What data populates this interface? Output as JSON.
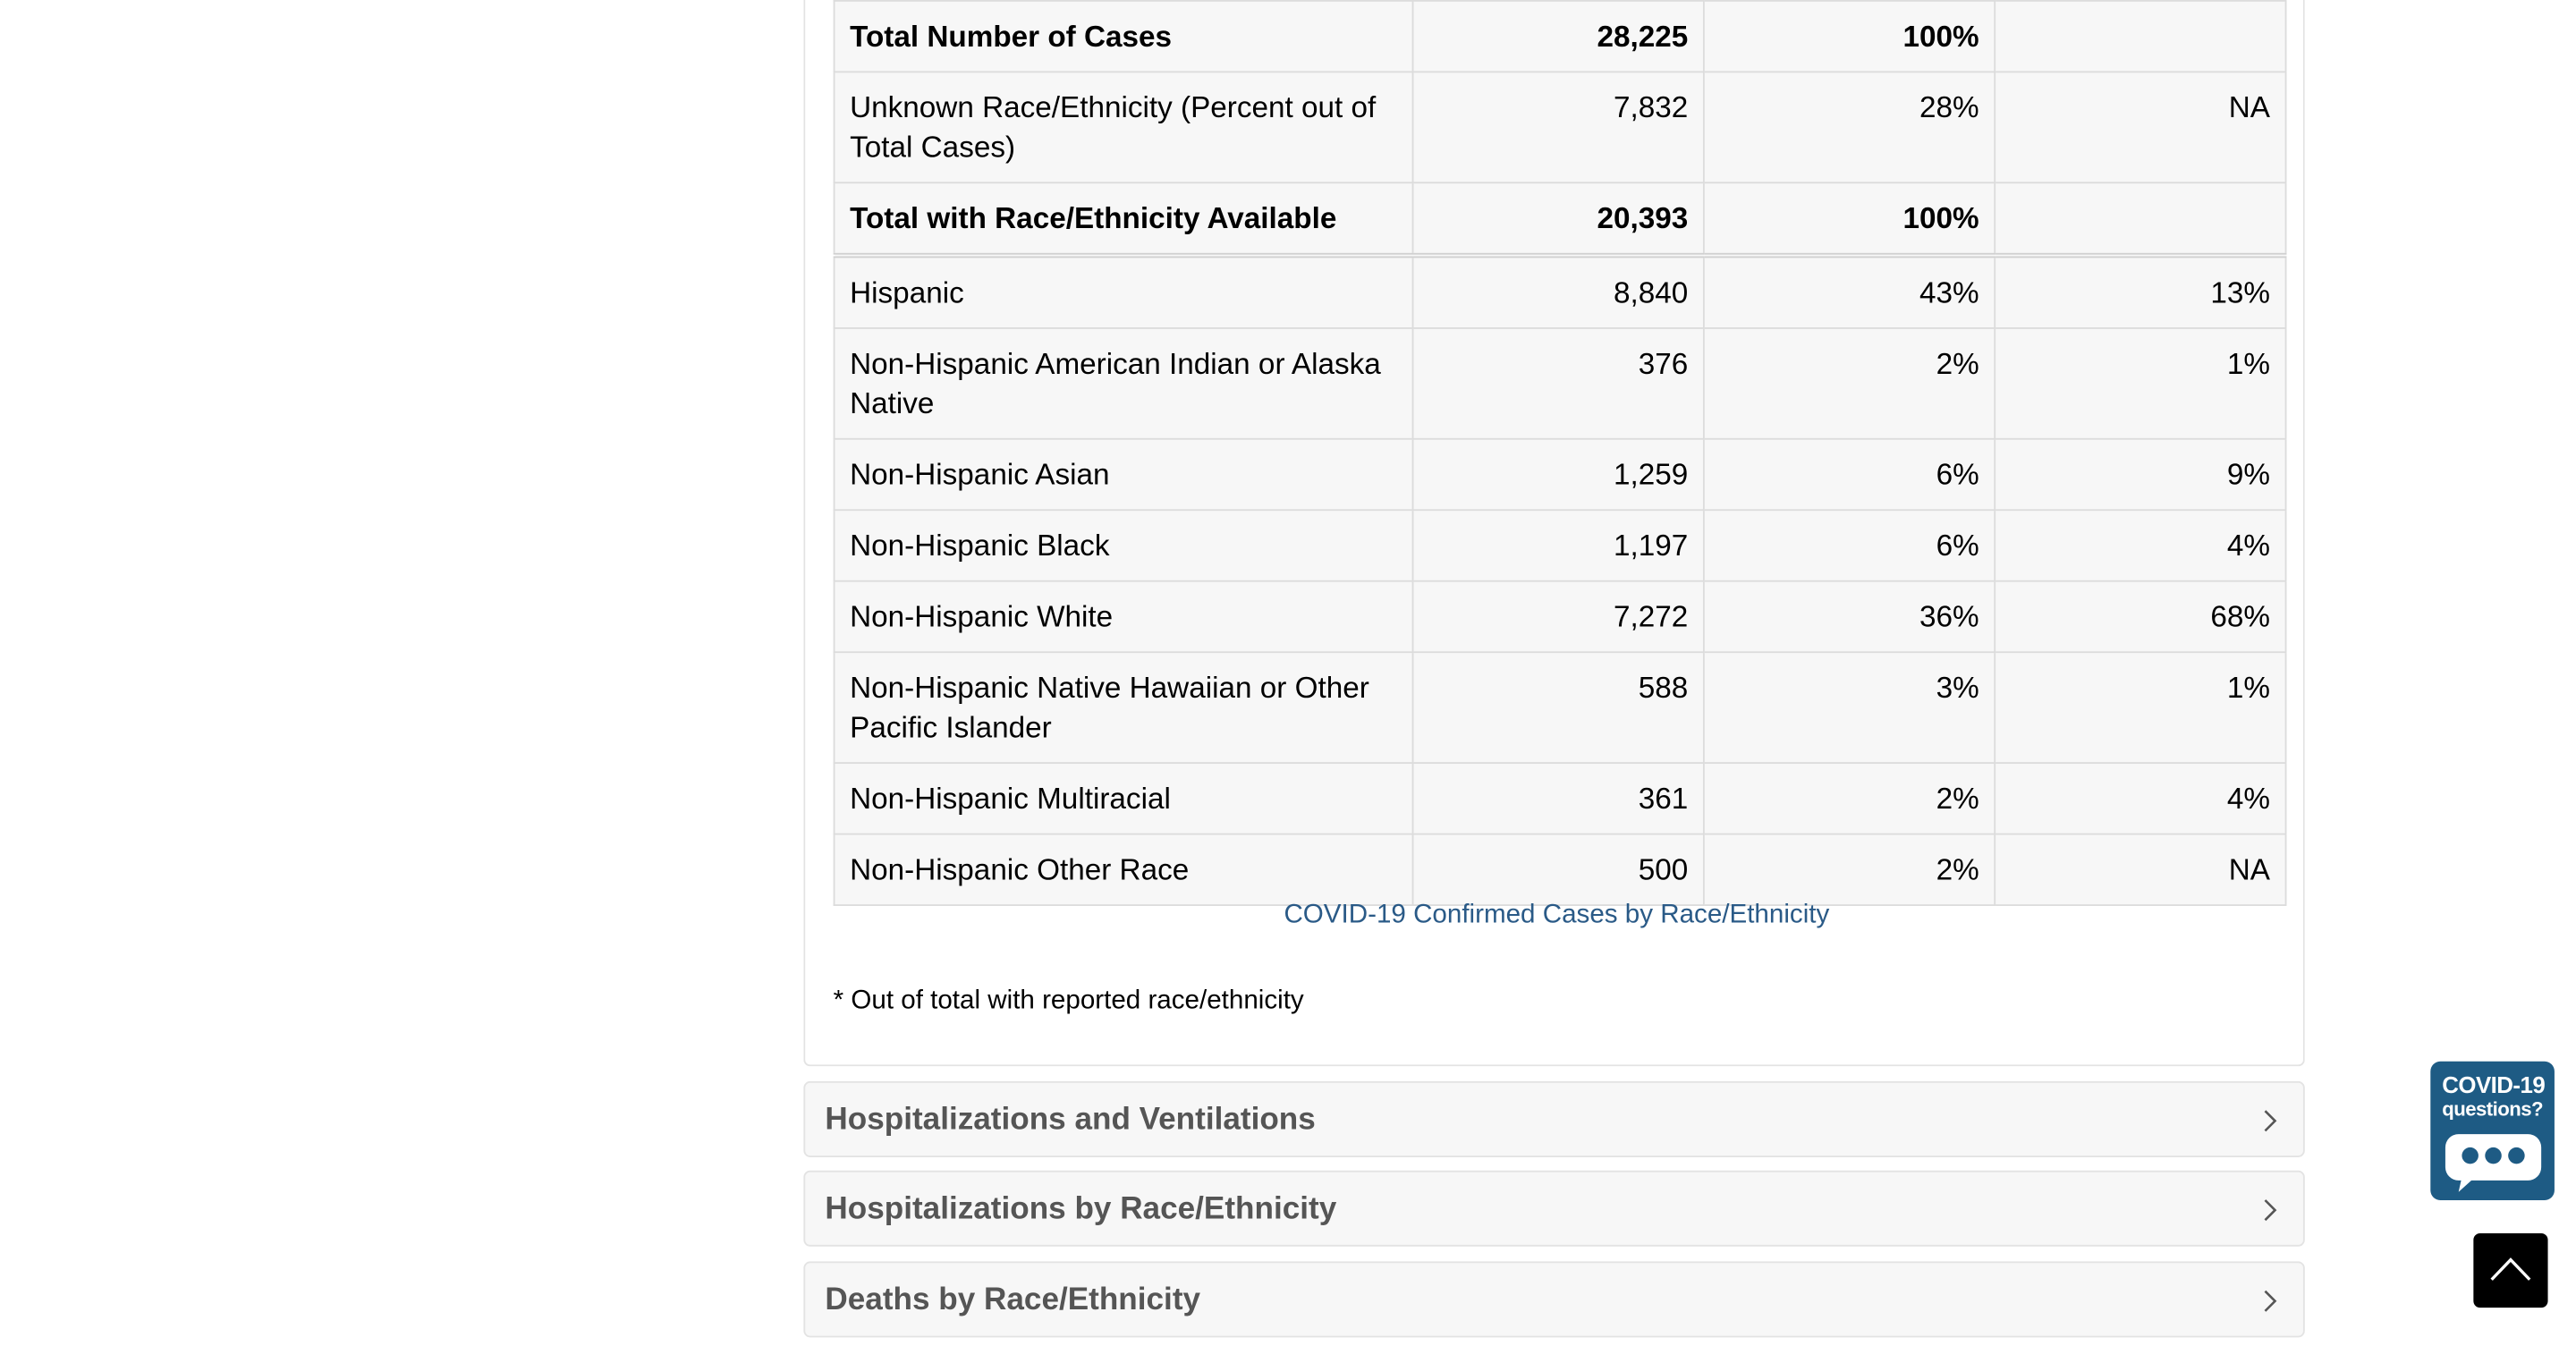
{
  "table": {
    "rows": [
      {
        "label": "Total Number of Cases",
        "count": "28,225",
        "percent": "100%",
        "population": "",
        "bold": true
      },
      {
        "label": "Unknown Race/Ethnicity (Percent out of Total Cases)",
        "count": "7,832",
        "percent": "28%",
        "population": "NA",
        "bold": false
      },
      {
        "label": "Total with Race/Ethnicity Available",
        "count": "20,393",
        "percent": "100%",
        "population": "",
        "bold": true
      },
      {
        "label": "Hispanic",
        "count": "8,840",
        "percent": "43%",
        "population": "13%",
        "bold": false
      },
      {
        "label": "Non-Hispanic American Indian or Alaska Native",
        "count": "376",
        "percent": "2%",
        "population": "1%",
        "bold": false
      },
      {
        "label": "Non-Hispanic Asian",
        "count": "1,259",
        "percent": "6%",
        "population": "9%",
        "bold": false
      },
      {
        "label": "Non-Hispanic Black",
        "count": "1,197",
        "percent": "6%",
        "population": "4%",
        "bold": false
      },
      {
        "label": "Non-Hispanic White",
        "count": "7,272",
        "percent": "36%",
        "population": "68%",
        "bold": false
      },
      {
        "label": "Non-Hispanic Native Hawaiian or Other Pacific Islander",
        "count": "588",
        "percent": "3%",
        "population": "1%",
        "bold": false
      },
      {
        "label": "Non-Hispanic Multiracial",
        "count": "361",
        "percent": "2%",
        "population": "4%",
        "bold": false
      },
      {
        "label": "Non-Hispanic Other Race",
        "count": "500",
        "percent": "2%",
        "population": "NA",
        "bold": false
      }
    ],
    "caption": "COVID-19 Confirmed Cases by Race/Ethnicity",
    "footnote": "* Out of total with reported race/ethnicity"
  },
  "accordions": [
    {
      "title": "Hospitalizations and Ventilations",
      "icon": "chevron-right-icon"
    },
    {
      "title": "Hospitalizations by Race/Ethnicity",
      "icon": "chevron-right-icon"
    },
    {
      "title": "Deaths by Race/Ethnicity",
      "icon": "chevron-right-icon"
    }
  ],
  "widgets": {
    "covid_badge": {
      "line1": "COVID-19",
      "line2": "questions?",
      "icon": "chat-bubble-icon",
      "color": "#1e5b84"
    },
    "back_to_top": {
      "icon": "chevron-up-icon",
      "color": "#000000"
    }
  },
  "colors": {
    "caption": "#2a5a87",
    "accordion_title": "#555555",
    "cell_background": "#f7f7f7"
  }
}
